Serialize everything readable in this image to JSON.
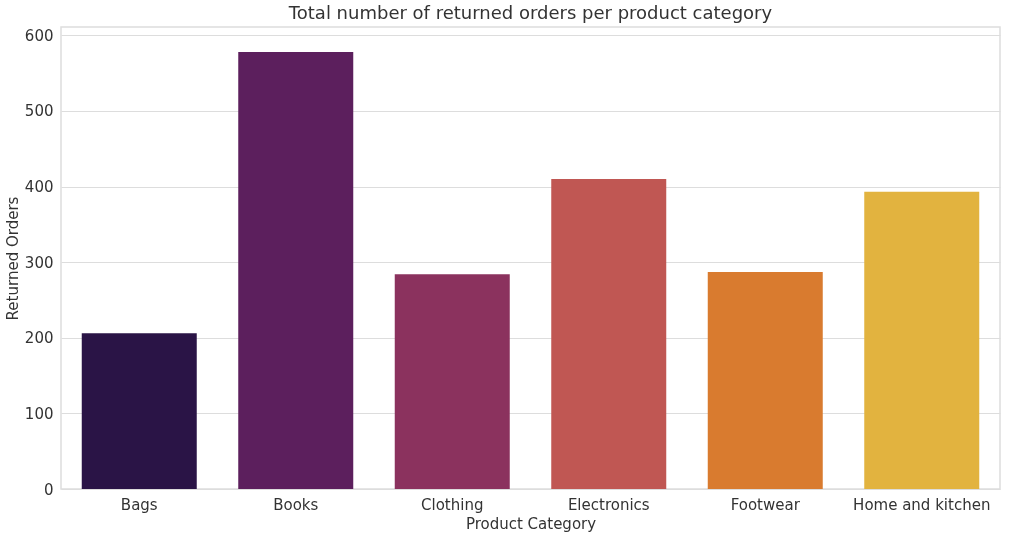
{
  "chart_data": {
    "type": "bar",
    "title": "Total number of returned orders per product category",
    "xlabel": "Product Category",
    "ylabel": "Returned Orders",
    "categories": [
      "Bags",
      "Books",
      "Clothing",
      "Electronics",
      "Footwear",
      "Home and kitchen"
    ],
    "values": [
      206,
      578,
      284,
      410,
      287,
      393
    ],
    "colors": [
      "#2a1446",
      "#5c1f5d",
      "#8b325e",
      "#c05753",
      "#d97b2f",
      "#e2b33f"
    ],
    "ylim": [
      0,
      611
    ],
    "yticks": [
      0,
      100,
      200,
      300,
      400,
      500,
      600
    ],
    "grid": "y"
  }
}
